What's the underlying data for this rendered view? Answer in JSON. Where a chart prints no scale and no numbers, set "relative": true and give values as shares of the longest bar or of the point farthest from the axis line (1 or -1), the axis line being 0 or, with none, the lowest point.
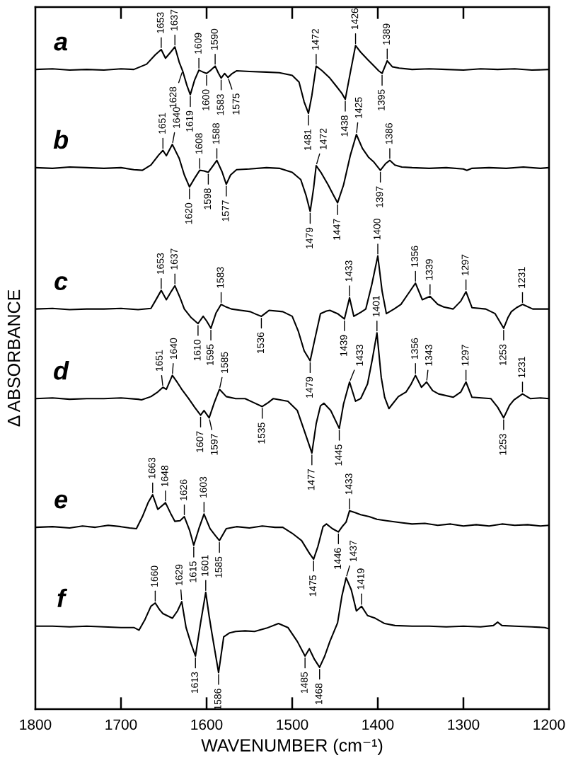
{
  "chart_data": {
    "type": "line",
    "relative": true,
    "xlabel": "WAVENUMBER (cm⁻¹)",
    "ylabel": "Δ ABSORBANCE",
    "xlim": [
      1800,
      1200
    ],
    "xticks": [
      1800,
      1700,
      1600,
      1500,
      1400,
      1300,
      1200
    ],
    "series": [
      {
        "name": "a",
        "color": "#000000",
        "x": [
          1800,
          1780,
          1760,
          1740,
          1720,
          1700,
          1685,
          1670,
          1660,
          1653,
          1648,
          1642,
          1637,
          1632,
          1628,
          1623,
          1619,
          1614,
          1609,
          1604,
          1600,
          1595,
          1590,
          1586,
          1583,
          1579,
          1575,
          1570,
          1565,
          1550,
          1530,
          1515,
          1500,
          1492,
          1486,
          1481,
          1477,
          1472,
          1465,
          1456,
          1448,
          1442,
          1438,
          1432,
          1426,
          1420,
          1412,
          1405,
          1399,
          1395,
          1389,
          1383,
          1375,
          1360,
          1340,
          1320,
          1300,
          1280,
          1260,
          1240,
          1220,
          1200
        ],
        "values": [
          0.964,
          0.965,
          0.963,
          0.964,
          0.963,
          0.965,
          0.964,
          0.972,
          0.986,
          0.994,
          0.981,
          0.99,
          0.998,
          0.975,
          0.962,
          0.94,
          0.926,
          0.948,
          0.963,
          0.96,
          0.958,
          0.963,
          0.969,
          0.958,
          0.951,
          0.958,
          0.952,
          0.958,
          0.962,
          0.961,
          0.96,
          0.959,
          0.955,
          0.945,
          0.915,
          0.898,
          0.925,
          0.969,
          0.962,
          0.951,
          0.938,
          0.928,
          0.919,
          0.96,
          1.0,
          0.99,
          0.979,
          0.97,
          0.962,
          0.958,
          0.977,
          0.968,
          0.966,
          0.964,
          0.965,
          0.964,
          0.963,
          0.965,
          0.964,
          0.965,
          0.963,
          0.964
        ]
      },
      {
        "name": "b",
        "color": "#000000",
        "x": [
          1800,
          1780,
          1760,
          1740,
          1720,
          1700,
          1685,
          1675,
          1665,
          1656,
          1651,
          1647,
          1640,
          1632,
          1626,
          1620,
          1614,
          1608,
          1603,
          1598,
          1593,
          1588,
          1582,
          1577,
          1572,
          1565,
          1550,
          1530,
          1515,
          1500,
          1490,
          1484,
          1479,
          1475,
          1472,
          1466,
          1458,
          1452,
          1447,
          1440,
          1432,
          1425,
          1418,
          1411,
          1405,
          1397,
          1391,
          1386,
          1380,
          1372,
          1360,
          1340,
          1320,
          1300,
          1296,
          1290,
          1270,
          1250,
          1230,
          1210,
          1200
        ],
        "values": [
          0.816,
          0.815,
          0.817,
          0.816,
          0.815,
          0.816,
          0.813,
          0.812,
          0.82,
          0.835,
          0.842,
          0.834,
          0.851,
          0.83,
          0.805,
          0.787,
          0.8,
          0.812,
          0.811,
          0.809,
          0.818,
          0.827,
          0.81,
          0.791,
          0.805,
          0.813,
          0.814,
          0.816,
          0.815,
          0.809,
          0.798,
          0.775,
          0.75,
          0.785,
          0.819,
          0.808,
          0.79,
          0.775,
          0.763,
          0.79,
          0.835,
          0.866,
          0.845,
          0.832,
          0.825,
          0.812,
          0.822,
          0.827,
          0.82,
          0.817,
          0.816,
          0.815,
          0.816,
          0.814,
          0.812,
          0.815,
          0.816,
          0.815,
          0.817,
          0.815,
          0.816
        ]
      },
      {
        "name": "c",
        "color": "#000000",
        "x": [
          1800,
          1780,
          1760,
          1740,
          1720,
          1700,
          1680,
          1665,
          1660,
          1653,
          1647,
          1642,
          1637,
          1631,
          1626,
          1618,
          1610,
          1604,
          1600,
          1595,
          1589,
          1583,
          1577,
          1571,
          1560,
          1549,
          1542,
          1536,
          1530,
          1527,
          1511,
          1500,
          1493,
          1486,
          1479,
          1474,
          1467,
          1460,
          1456,
          1447,
          1439,
          1433,
          1428,
          1420,
          1414,
          1407,
          1400,
          1395,
          1390,
          1381,
          1373,
          1365,
          1356,
          1348,
          1339,
          1330,
          1323,
          1312,
          1303,
          1297,
          1290,
          1274,
          1263,
          1258,
          1253,
          1248,
          1244,
          1238,
          1231,
          1219,
          1200
        ],
        "values": [
          0.603,
          0.604,
          0.602,
          0.603,
          0.603,
          0.604,
          0.602,
          0.604,
          0.615,
          0.631,
          0.617,
          0.628,
          0.638,
          0.62,
          0.603,
          0.59,
          0.581,
          0.592,
          0.585,
          0.574,
          0.597,
          0.61,
          0.606,
          0.603,
          0.601,
          0.599,
          0.595,
          0.592,
          0.598,
          0.601,
          0.599,
          0.592,
          0.57,
          0.54,
          0.525,
          0.555,
          0.596,
          0.6,
          0.601,
          0.596,
          0.588,
          0.62,
          0.592,
          0.598,
          0.603,
          0.64,
          0.683,
          0.63,
          0.596,
          0.603,
          0.61,
          0.625,
          0.642,
          0.617,
          0.622,
          0.61,
          0.606,
          0.603,
          0.615,
          0.629,
          0.605,
          0.603,
          0.596,
          0.585,
          0.574,
          0.59,
          0.599,
          0.605,
          0.61,
          0.603,
          0.603
        ]
      },
      {
        "name": "d",
        "color": "#000000",
        "x": [
          1800,
          1780,
          1760,
          1740,
          1720,
          1700,
          1680,
          1676,
          1665,
          1657,
          1651,
          1647,
          1640,
          1634,
          1629,
          1621,
          1614,
          1607,
          1603,
          1597,
          1591,
          1585,
          1577,
          1566,
          1555,
          1545,
          1535,
          1528,
          1522,
          1505,
          1494,
          1486,
          1477,
          1472,
          1467,
          1463,
          1455,
          1445,
          1440,
          1433,
          1426,
          1420,
          1412,
          1406,
          1401,
          1396,
          1392,
          1387,
          1376,
          1367,
          1361,
          1356,
          1349,
          1343,
          1336,
          1329,
          1312,
          1303,
          1297,
          1290,
          1268,
          1260,
          1253,
          1246,
          1241,
          1231,
          1222,
          1210,
          1200
        ],
        "values": [
          0.468,
          0.469,
          0.467,
          0.468,
          0.468,
          0.469,
          0.467,
          0.466,
          0.471,
          0.478,
          0.485,
          0.482,
          0.503,
          0.492,
          0.482,
          0.468,
          0.455,
          0.443,
          0.45,
          0.439,
          0.462,
          0.482,
          0.471,
          0.468,
          0.468,
          0.462,
          0.456,
          0.462,
          0.468,
          0.464,
          0.45,
          0.42,
          0.386,
          0.43,
          0.457,
          0.461,
          0.45,
          0.423,
          0.46,
          0.493,
          0.464,
          0.468,
          0.49,
          0.53,
          0.567,
          0.5,
          0.47,
          0.453,
          0.471,
          0.478,
          0.49,
          0.503,
          0.485,
          0.493,
          0.48,
          0.475,
          0.47,
          0.478,
          0.493,
          0.47,
          0.468,
          0.455,
          0.439,
          0.458,
          0.466,
          0.475,
          0.468,
          0.469,
          0.468
        ]
      },
      {
        "name": "e",
        "color": "#000000",
        "x": [
          1800,
          1780,
          1760,
          1745,
          1730,
          1715,
          1700,
          1690,
          1682,
          1675,
          1668,
          1663,
          1657,
          1648,
          1642,
          1637,
          1631,
          1626,
          1620,
          1615,
          1609,
          1603,
          1596,
          1590,
          1585,
          1577,
          1565,
          1550,
          1535,
          1520,
          1511,
          1500,
          1489,
          1480,
          1475,
          1470,
          1464,
          1460,
          1453,
          1446,
          1441,
          1437,
          1433,
          1426,
          1420,
          1410,
          1401,
          1390,
          1373,
          1360,
          1345,
          1330,
          1315,
          1300,
          1285,
          1270,
          1255,
          1240,
          1225,
          1210,
          1200
        ],
        "values": [
          0.274,
          0.275,
          0.273,
          0.276,
          0.274,
          0.277,
          0.275,
          0.273,
          0.272,
          0.29,
          0.312,
          0.323,
          0.301,
          0.311,
          0.295,
          0.283,
          0.284,
          0.29,
          0.27,
          0.247,
          0.272,
          0.294,
          0.272,
          0.262,
          0.254,
          0.272,
          0.275,
          0.273,
          0.276,
          0.274,
          0.274,
          0.265,
          0.254,
          0.235,
          0.226,
          0.245,
          0.275,
          0.279,
          0.272,
          0.267,
          0.276,
          0.282,
          0.299,
          0.296,
          0.293,
          0.29,
          0.286,
          0.284,
          0.281,
          0.279,
          0.28,
          0.277,
          0.279,
          0.276,
          0.278,
          0.276,
          0.279,
          0.277,
          0.278,
          0.276,
          0.277
        ]
      },
      {
        "name": "f",
        "color": "#000000",
        "x": [
          1800,
          1780,
          1760,
          1740,
          1720,
          1700,
          1685,
          1679,
          1672,
          1665,
          1660,
          1655,
          1651,
          1640,
          1634,
          1629,
          1624,
          1618,
          1613,
          1607,
          1601,
          1597,
          1594,
          1586,
          1580,
          1573,
          1566,
          1555,
          1544,
          1530,
          1516,
          1505,
          1494,
          1485,
          1480,
          1474,
          1468,
          1462,
          1456,
          1447,
          1442,
          1437,
          1431,
          1425,
          1419,
          1412,
          1403,
          1392,
          1380,
          1360,
          1340,
          1320,
          1300,
          1280,
          1265,
          1260,
          1255,
          1240,
          1220,
          1205,
          1200
        ],
        "values": [
          0.125,
          0.125,
          0.124,
          0.125,
          0.124,
          0.123,
          0.123,
          0.119,
          0.135,
          0.155,
          0.16,
          0.15,
          0.144,
          0.137,
          0.148,
          0.162,
          0.123,
          0.098,
          0.08,
          0.13,
          0.176,
          0.14,
          0.116,
          0.055,
          0.109,
          0.115,
          0.117,
          0.118,
          0.117,
          0.122,
          0.129,
          0.123,
          0.102,
          0.08,
          0.091,
          0.075,
          0.063,
          0.08,
          0.102,
          0.13,
          0.17,
          0.198,
          0.18,
          0.148,
          0.155,
          0.141,
          0.137,
          0.129,
          0.126,
          0.125,
          0.125,
          0.124,
          0.125,
          0.124,
          0.126,
          0.131,
          0.126,
          0.125,
          0.124,
          0.123,
          0.121
        ]
      }
    ],
    "annotations": [
      {
        "text": "1653",
        "x": 1653,
        "y": 0.994
      },
      {
        "text": "1637",
        "x": 1637,
        "y": 0.998
      },
      {
        "text": "1628",
        "x": 1628,
        "y": 0.962
      },
      {
        "text": "1619",
        "x": 1619,
        "y": 0.926
      },
      {
        "text": "1609",
        "x": 1609,
        "y": 0.963
      },
      {
        "text": "1600",
        "x": 1600,
        "y": 0.958
      },
      {
        "text": "1590",
        "x": 1590,
        "y": 0.969
      },
      {
        "text": "1583",
        "x": 1583,
        "y": 0.951
      },
      {
        "text": "1575",
        "x": 1575,
        "y": 0.952
      },
      {
        "text": "1481",
        "x": 1481,
        "y": 0.898
      },
      {
        "text": "1472",
        "x": 1472,
        "y": 0.969
      },
      {
        "text": "1438",
        "x": 1438,
        "y": 0.919
      },
      {
        "text": "1426",
        "x": 1426,
        "y": 1.0
      },
      {
        "text": "1395",
        "x": 1395,
        "y": 0.958
      },
      {
        "text": "1389",
        "x": 1389,
        "y": 0.977
      },
      {
        "text": "1651",
        "x": 1651,
        "y": 0.842
      },
      {
        "text": "1640",
        "x": 1640,
        "y": 0.851
      },
      {
        "text": "1620",
        "x": 1620,
        "y": 0.787
      },
      {
        "text": "1608",
        "x": 1608,
        "y": 0.812
      },
      {
        "text": "1598",
        "x": 1598,
        "y": 0.809
      },
      {
        "text": "1588",
        "x": 1588,
        "y": 0.827
      },
      {
        "text": "1577",
        "x": 1577,
        "y": 0.791
      },
      {
        "text": "1479",
        "x": 1479,
        "y": 0.75
      },
      {
        "text": "1472",
        "x": 1472,
        "y": 0.819
      },
      {
        "text": "1447",
        "x": 1447,
        "y": 0.763
      },
      {
        "text": "1425",
        "x": 1425,
        "y": 0.866
      },
      {
        "text": "1397",
        "x": 1397,
        "y": 0.812
      },
      {
        "text": "1386",
        "x": 1386,
        "y": 0.827
      },
      {
        "text": "1653",
        "x": 1653,
        "y": 0.631
      },
      {
        "text": "1637",
        "x": 1637,
        "y": 0.638
      },
      {
        "text": "1610",
        "x": 1610,
        "y": 0.581
      },
      {
        "text": "1595",
        "x": 1595,
        "y": 0.574
      },
      {
        "text": "1583",
        "x": 1583,
        "y": 0.61
      },
      {
        "text": "1536",
        "x": 1536,
        "y": 0.592
      },
      {
        "text": "1479",
        "x": 1479,
        "y": 0.525
      },
      {
        "text": "1439",
        "x": 1439,
        "y": 0.588
      },
      {
        "text": "1433",
        "x": 1433,
        "y": 0.62
      },
      {
        "text": "1400",
        "x": 1400,
        "y": 0.683
      },
      {
        "text": "1356",
        "x": 1356,
        "y": 0.642
      },
      {
        "text": "1339",
        "x": 1339,
        "y": 0.622
      },
      {
        "text": "1297",
        "x": 1297,
        "y": 0.629
      },
      {
        "text": "1253",
        "x": 1253,
        "y": 0.574
      },
      {
        "text": "1231",
        "x": 1231,
        "y": 0.61
      },
      {
        "text": "1651",
        "x": 1651,
        "y": 0.485
      },
      {
        "text": "1640",
        "x": 1640,
        "y": 0.503
      },
      {
        "text": "1607",
        "x": 1607,
        "y": 0.443
      },
      {
        "text": "1597",
        "x": 1597,
        "y": 0.439
      },
      {
        "text": "1585",
        "x": 1585,
        "y": 0.482
      },
      {
        "text": "1535",
        "x": 1535,
        "y": 0.456
      },
      {
        "text": "1477",
        "x": 1477,
        "y": 0.386
      },
      {
        "text": "1445",
        "x": 1445,
        "y": 0.423
      },
      {
        "text": "1433",
        "x": 1433,
        "y": 0.493
      },
      {
        "text": "1401",
        "x": 1401,
        "y": 0.567
      },
      {
        "text": "1356",
        "x": 1356,
        "y": 0.503
      },
      {
        "text": "1343",
        "x": 1343,
        "y": 0.493
      },
      {
        "text": "1297",
        "x": 1297,
        "y": 0.493
      },
      {
        "text": "1253",
        "x": 1253,
        "y": 0.439
      },
      {
        "text": "1231",
        "x": 1231,
        "y": 0.475
      },
      {
        "text": "1663",
        "x": 1663,
        "y": 0.323
      },
      {
        "text": "1648",
        "x": 1648,
        "y": 0.311
      },
      {
        "text": "1626",
        "x": 1626,
        "y": 0.29
      },
      {
        "text": "1615",
        "x": 1615,
        "y": 0.247
      },
      {
        "text": "1603",
        "x": 1603,
        "y": 0.294
      },
      {
        "text": "1585",
        "x": 1585,
        "y": 0.254
      },
      {
        "text": "1475",
        "x": 1475,
        "y": 0.226
      },
      {
        "text": "1446",
        "x": 1446,
        "y": 0.267
      },
      {
        "text": "1433",
        "x": 1433,
        "y": 0.299
      },
      {
        "text": "1660",
        "x": 1660,
        "y": 0.16
      },
      {
        "text": "1629",
        "x": 1629,
        "y": 0.162
      },
      {
        "text": "1613",
        "x": 1613,
        "y": 0.08
      },
      {
        "text": "1601",
        "x": 1601,
        "y": 0.176
      },
      {
        "text": "1586",
        "x": 1586,
        "y": 0.055
      },
      {
        "text": "1485",
        "x": 1485,
        "y": 0.08
      },
      {
        "text": "1468",
        "x": 1468,
        "y": 0.063
      },
      {
        "text": "1437",
        "x": 1437,
        "y": 0.198
      },
      {
        "text": "1419",
        "x": 1419,
        "y": 0.155
      }
    ]
  }
}
